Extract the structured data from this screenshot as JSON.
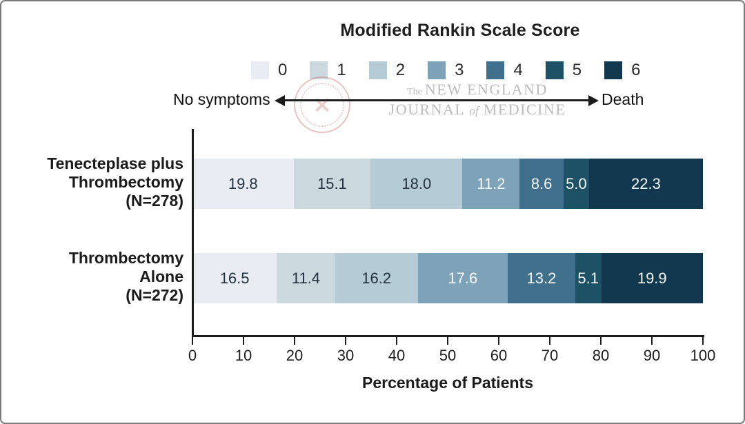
{
  "title": "Modified Rankin Scale Score",
  "axis_annotation": {
    "left": "No symptoms",
    "right": "Death"
  },
  "watermark": {
    "the": "The",
    "line1": "NEW ENGLAND",
    "line2_a": "JOURNAL",
    "line2_of": "of",
    "line2_b": "MEDICINE"
  },
  "legend": {
    "items": [
      {
        "label": "0",
        "color": "#e9edf3"
      },
      {
        "label": "1",
        "color": "#cbd9de"
      },
      {
        "label": "2",
        "color": "#b5ccd6"
      },
      {
        "label": "3",
        "color": "#7ea3b8"
      },
      {
        "label": "4",
        "color": "#41708c"
      },
      {
        "label": "5",
        "color": "#1d5166"
      },
      {
        "label": "6",
        "color": "#11384e"
      }
    ]
  },
  "chart_data": {
    "type": "bar",
    "stacked": true,
    "orientation": "horizontal",
    "title": "Modified Rankin Scale Score",
    "xlabel": "Percentage of Patients",
    "xlim": [
      0,
      100
    ],
    "xticks": [
      0,
      10,
      20,
      30,
      40,
      50,
      60,
      70,
      80,
      90,
      100
    ],
    "grid": false,
    "legend_position": "top",
    "categories": [
      "Tenecteplase plus Thrombectomy (N=278)",
      "Thrombectomy Alone (N=272)"
    ],
    "category_label_lines": [
      [
        "Tenecteplase plus",
        "Thrombectomy",
        "(N=278)"
      ],
      [
        "Thrombectomy",
        "Alone",
        "(N=272)"
      ]
    ],
    "series": [
      {
        "name": "0",
        "color": "#e9edf3",
        "text_color": "#23313f",
        "values": [
          19.8,
          16.5
        ]
      },
      {
        "name": "1",
        "color": "#cbd9de",
        "text_color": "#23313f",
        "values": [
          15.1,
          11.4
        ]
      },
      {
        "name": "2",
        "color": "#b5ccd6",
        "text_color": "#23313f",
        "values": [
          18.0,
          16.2
        ]
      },
      {
        "name": "3",
        "color": "#7ea3b8",
        "text_color": "#f4f8fa",
        "values": [
          11.2,
          17.6
        ]
      },
      {
        "name": "4",
        "color": "#41708c",
        "text_color": "#f4f8fa",
        "values": [
          8.6,
          13.2
        ]
      },
      {
        "name": "5",
        "color": "#1d5166",
        "text_color": "#f4f8fa",
        "values": [
          5.0,
          5.1
        ]
      },
      {
        "name": "6",
        "color": "#11384e",
        "text_color": "#f4f8fa",
        "values": [
          22.3,
          19.9
        ]
      }
    ]
  }
}
